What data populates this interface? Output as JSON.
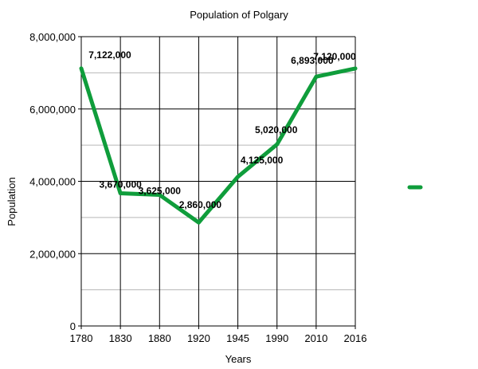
{
  "chart_data": {
    "type": "line",
    "title": "Population of Polgary",
    "xlabel": "Years",
    "ylabel": "Population",
    "categories": [
      "1780",
      "1830",
      "1880",
      "1920",
      "1945",
      "1990",
      "2010",
      "2016"
    ],
    "series": [
      {
        "values": [
          7122000,
          3670000,
          3625000,
          2860000,
          4125000,
          5020000,
          6893000,
          7120000
        ],
        "color": "#0f9d3b"
      }
    ],
    "data_labels": [
      "7,122,000",
      "3,670,000",
      "3,625,000",
      "2,860,000",
      "4,125,000",
      "5,020,000",
      "6,893,000",
      "7,120,000"
    ],
    "ylim": [
      0,
      8000000
    ],
    "y_ticks": [
      "0",
      "2,000,000",
      "4,000,000",
      "6,000,000",
      "8,000,000"
    ],
    "y_tick_values": [
      0,
      2000000,
      4000000,
      6000000,
      8000000
    ],
    "grid": true,
    "legend": "right",
    "colors": {
      "line": "#0f9d3b",
      "major_grid": "#000000",
      "minor_grid": "#b7b7b7"
    }
  }
}
